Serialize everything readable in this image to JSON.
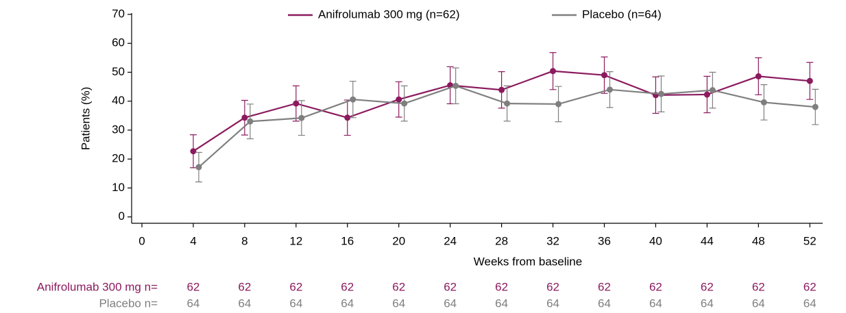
{
  "chart_data": {
    "type": "line",
    "x_label": "Weeks from baseline",
    "y_label": "Patients (%)",
    "x": [
      4,
      8,
      12,
      16,
      20,
      24,
      28,
      32,
      36,
      40,
      44,
      48,
      52
    ],
    "series": [
      {
        "name": "Anifrolumab 300 mg (n=62)",
        "color": "#8b1a5e",
        "values": [
          22.7,
          34.3,
          39.2,
          34.3,
          40.6,
          45.5,
          43.9,
          50.4,
          49.0,
          42.1,
          42.3,
          48.6,
          47.0
        ],
        "errors": [
          5.7,
          6.0,
          6.1,
          6.1,
          6.1,
          6.4,
          6.3,
          6.4,
          6.3,
          6.3,
          6.3,
          6.4,
          6.4
        ]
      },
      {
        "name": "Placebo (n=64)",
        "color": "#7f7f7f",
        "values": [
          17.2,
          33.0,
          34.2,
          40.6,
          39.2,
          45.3,
          39.2,
          39.0,
          44.0,
          42.5,
          43.8,
          39.6,
          38.0
        ],
        "errors": [
          5.1,
          6.0,
          6.0,
          6.3,
          6.1,
          6.2,
          6.1,
          6.1,
          6.2,
          6.2,
          6.2,
          6.1,
          6.1
        ]
      }
    ],
    "xlim": [
      -0.8,
      53
    ],
    "xticks": [
      0,
      4,
      8,
      12,
      16,
      20,
      24,
      28,
      32,
      36,
      40,
      44,
      48,
      52
    ],
    "ylim": [
      -2.2,
      70
    ],
    "yticks": [
      0,
      10,
      20,
      30,
      40,
      50,
      60,
      70
    ],
    "legend": "top",
    "risk_table": [
      {
        "label": "Anifrolumab 300 mg n=",
        "color": "#8b1a5e",
        "values": [
          62,
          62,
          62,
          62,
          62,
          62,
          62,
          62,
          62,
          62,
          62,
          62,
          62
        ]
      },
      {
        "label": "Placebo n=",
        "color": "#7f7f7f",
        "values": [
          64,
          64,
          64,
          64,
          64,
          64,
          64,
          64,
          64,
          64,
          64,
          64,
          64
        ]
      }
    ]
  }
}
